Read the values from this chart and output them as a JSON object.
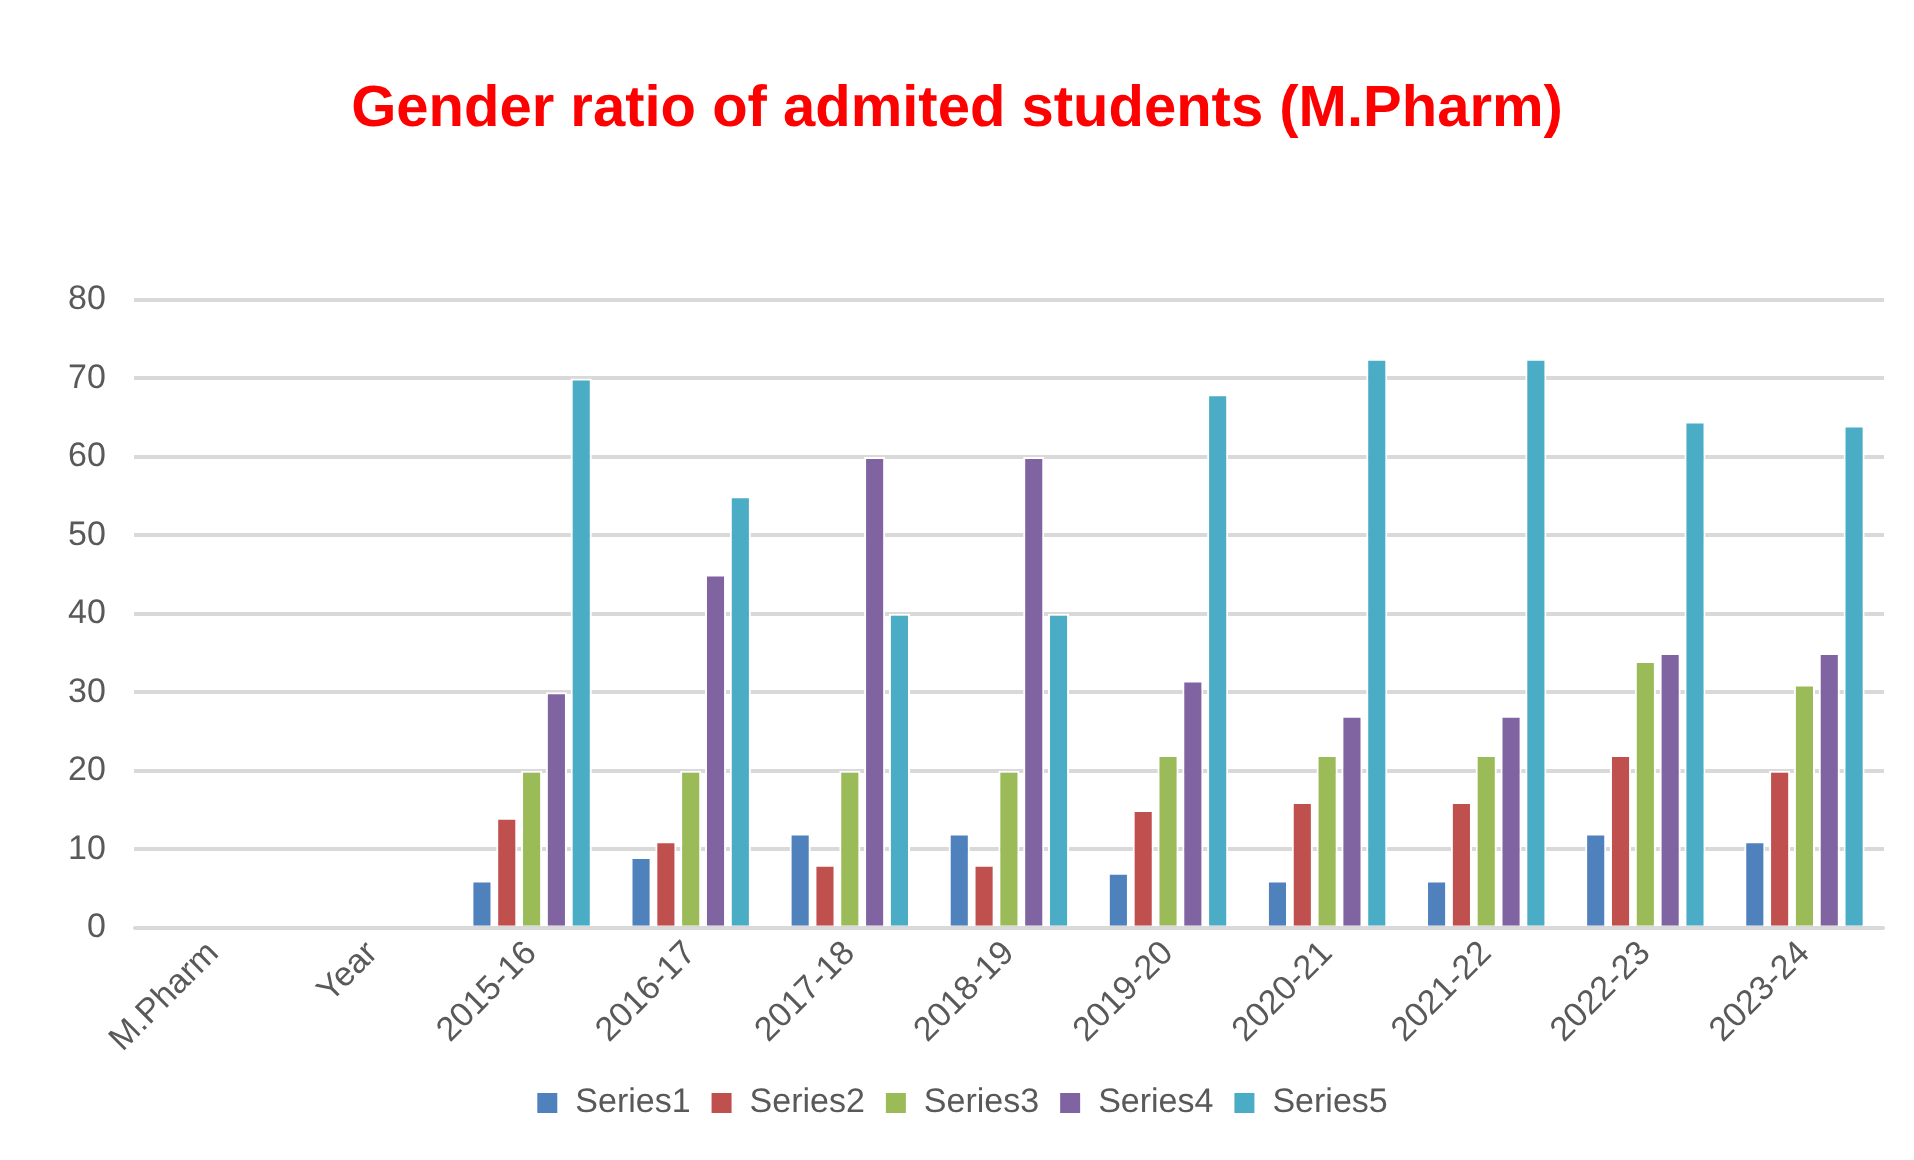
{
  "chart_data": {
    "type": "bar",
    "title": "Gender ratio of admited students (M.Pharm)",
    "categories": [
      "M.Pharm",
      "Year",
      "2015-16",
      "2016-17",
      "2017-18",
      "2018-19",
      "2019-20",
      "2020-21",
      "2021-22",
      "2022-23",
      "2023-24"
    ],
    "series": [
      {
        "name": "Series1",
        "color": "#4f81bd",
        "values": [
          null,
          null,
          6,
          9,
          12,
          12,
          7,
          6,
          6,
          12,
          11
        ]
      },
      {
        "name": "Series2",
        "color": "#c0504d",
        "values": [
          null,
          null,
          14,
          11,
          8,
          8,
          15,
          16,
          16,
          22,
          20
        ]
      },
      {
        "name": "Series3",
        "color": "#9bbb59",
        "values": [
          null,
          null,
          20,
          20,
          20,
          20,
          22,
          22,
          22,
          34,
          31
        ]
      },
      {
        "name": "Series4",
        "color": "#8064a2",
        "values": [
          null,
          null,
          30,
          45,
          60,
          60,
          31.5,
          27,
          27,
          35,
          35
        ]
      },
      {
        "name": "Series5",
        "color": "#4bacc6",
        "values": [
          null,
          null,
          70,
          55,
          40,
          40,
          68,
          72.5,
          72.5,
          64.5,
          64
        ]
      }
    ],
    "ylim": [
      0,
      80
    ],
    "yticks": [
      0,
      10,
      20,
      30,
      40,
      50,
      60,
      70,
      80
    ],
    "grid": "y",
    "legend": "bottom"
  }
}
